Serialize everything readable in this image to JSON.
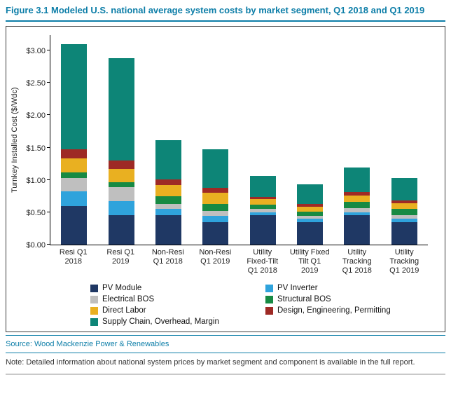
{
  "header": {
    "title": "Figure 3.1 Modeled U.S. national average system costs by market segment, Q1 2018 and Q1 2019"
  },
  "footer": {
    "source": "Source: Wood Mackenzie Power & Renewables",
    "note": "Note: Detailed information about national system prices by market segment and component is available in the full report."
  },
  "colors": {
    "accent_teal": "#0D7EA8",
    "frame_border": "#3C3C3C"
  },
  "chart_data": {
    "type": "bar",
    "stacked": true,
    "title": "Modeled U.S. national average system costs by market segment, Q1 2018 and Q1 2019",
    "xlabel": "",
    "ylabel": "Turnkey Installed Cost ($/Wdc)",
    "ylim": [
      0,
      3.25
    ],
    "grid": false,
    "legend_position": "bottom",
    "yticks": [
      {
        "value": 0.0,
        "label": "$0.00"
      },
      {
        "value": 0.5,
        "label": "$0.50"
      },
      {
        "value": 1.0,
        "label": "$1.00"
      },
      {
        "value": 1.5,
        "label": "$1.50"
      },
      {
        "value": 2.0,
        "label": "$2.00"
      },
      {
        "value": 2.5,
        "label": "$2.50"
      },
      {
        "value": 3.0,
        "label": "$3.00"
      }
    ],
    "categories": [
      "Resi Q1\n2018",
      "Resi Q1\n2019",
      "Non-Resi\nQ1 2018",
      "Non-Resi\nQ1 2019",
      "Utility\nFixed-Tilt\nQ1 2018",
      "Utility Fixed\nTilt Q1\n2019",
      "Utility\nTracking\nQ1 2018",
      "Utility\nTracking\nQ1 2019"
    ],
    "series": [
      {
        "name": "PV Module",
        "color": "#1F3864",
        "values": [
          0.6,
          0.45,
          0.45,
          0.35,
          0.45,
          0.35,
          0.45,
          0.35
        ]
      },
      {
        "name": "PV Inverter",
        "color": "#2FA3DC",
        "values": [
          0.22,
          0.22,
          0.1,
          0.09,
          0.05,
          0.05,
          0.05,
          0.05
        ]
      },
      {
        "name": "Electrical BOS",
        "color": "#BFBFBF",
        "values": [
          0.21,
          0.22,
          0.08,
          0.08,
          0.05,
          0.04,
          0.06,
          0.05
        ]
      },
      {
        "name": "Structural BOS",
        "color": "#178A43",
        "values": [
          0.09,
          0.08,
          0.12,
          0.11,
          0.07,
          0.07,
          0.1,
          0.1
        ]
      },
      {
        "name": "Direct Labor",
        "color": "#E9B021",
        "values": [
          0.21,
          0.2,
          0.17,
          0.17,
          0.08,
          0.08,
          0.1,
          0.09
        ]
      },
      {
        "name": "Design, Engineering, Permitting",
        "color": "#9E2A25",
        "values": [
          0.14,
          0.13,
          0.09,
          0.08,
          0.04,
          0.04,
          0.05,
          0.04
        ]
      },
      {
        "name": "Supply Chain, Overhead, Margin",
        "color": "#0D8577",
        "values": [
          1.63,
          1.58,
          0.61,
          0.59,
          0.32,
          0.3,
          0.38,
          0.35
        ]
      }
    ],
    "totals": [
      3.1,
      2.88,
      1.62,
      1.47,
      1.06,
      0.93,
      1.19,
      1.03
    ]
  }
}
